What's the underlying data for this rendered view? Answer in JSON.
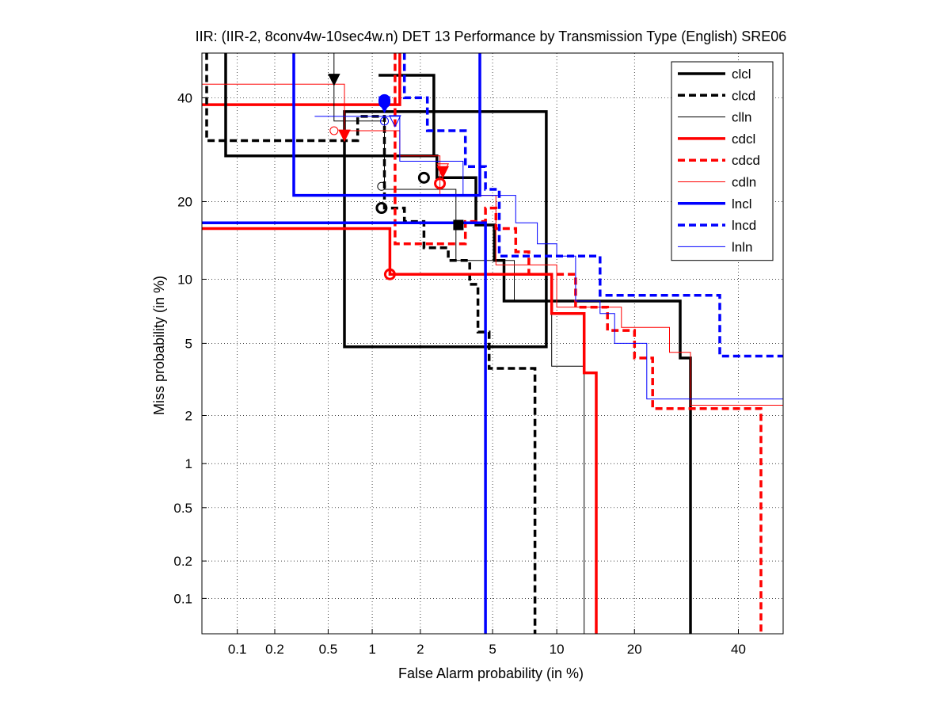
{
  "chart_data": {
    "type": "line",
    "subtype": "DET curve (step), normal-deviate scaled axes",
    "title": "IIR: (IIR-2, 8conv4w-10sec4w.n) DET 13 Performance by Transmission Type (English) SRE06",
    "xlabel": "False Alarm probability (in %)",
    "ylabel": "Miss probability (in %)",
    "x_ticks": [
      0.1,
      0.2,
      0.5,
      1,
      2,
      5,
      10,
      20,
      40
    ],
    "x_tick_labels": [
      "0.1",
      "0.2",
      "0.5",
      "1",
      "2",
      "5",
      "10",
      "20",
      "40"
    ],
    "y_ticks": [
      0.1,
      0.2,
      0.5,
      1,
      2,
      5,
      10,
      20,
      40
    ],
    "y_tick_labels": [
      "0.1",
      "0.2",
      "0.5",
      "1",
      "2",
      "5",
      "10",
      "20",
      "40"
    ],
    "xlim": [
      0.05,
      50
    ],
    "ylim": [
      0.05,
      50
    ],
    "grid": "dotted",
    "legend_position": "top-right",
    "series": [
      {
        "name": "clcl",
        "color": "#000000",
        "style": "solid",
        "weight": "thick",
        "points": [
          [
            0.08,
            60
          ],
          [
            0.08,
            28
          ],
          [
            2.5,
            28
          ],
          [
            2.5,
            24
          ],
          [
            4.1,
            24
          ],
          [
            4.1,
            16.5
          ],
          [
            5.1,
            16.5
          ],
          [
            5.1,
            12
          ],
          [
            5.7,
            12
          ],
          [
            5.7,
            8
          ],
          [
            28,
            8
          ],
          [
            28,
            4.2
          ],
          [
            30,
            4.2
          ],
          [
            30,
            0.05
          ]
        ],
        "actual_marker": {
          "x": 2.1,
          "y": 24,
          "shape": "circle"
        },
        "min_marker": {
          "x": 3.3,
          "y": 16.5,
          "shape": "square"
        }
      },
      {
        "name": "clcd",
        "color": "#000000",
        "style": "dashed",
        "weight": "thick",
        "points": [
          [
            0.055,
            60
          ],
          [
            0.055,
            31
          ],
          [
            0.8,
            31
          ],
          [
            0.8,
            36
          ],
          [
            1.2,
            36
          ],
          [
            1.2,
            19
          ],
          [
            1.6,
            19
          ],
          [
            1.6,
            17
          ],
          [
            2.1,
            17
          ],
          [
            2.1,
            13.5
          ],
          [
            2.9,
            13.5
          ],
          [
            2.9,
            12
          ],
          [
            3.8,
            12
          ],
          [
            3.8,
            9.5
          ],
          [
            4.2,
            9.5
          ],
          [
            4.2,
            5.7
          ],
          [
            4.8,
            5.7
          ],
          [
            4.8,
            3.7
          ],
          [
            8,
            3.7
          ],
          [
            8,
            0.05
          ]
        ],
        "actual_marker": {
          "x": 1.15,
          "y": 19,
          "shape": "circle"
        },
        "min_marker": {
          "x": 0.55,
          "y": 44,
          "shape": "triangle-down"
        }
      },
      {
        "name": "clln",
        "color": "#000000",
        "style": "solid",
        "weight": "thin",
        "points": [
          [
            0.55,
            60
          ],
          [
            0.55,
            35
          ],
          [
            1.2,
            35
          ],
          [
            1.2,
            22
          ],
          [
            3.2,
            22
          ],
          [
            3.2,
            12
          ],
          [
            6.4,
            12
          ],
          [
            6.4,
            8
          ],
          [
            9.5,
            8
          ],
          [
            9.5,
            3.8
          ],
          [
            13,
            3.8
          ],
          [
            13,
            0.05
          ]
        ],
        "actual_marker": {
          "x": 1.15,
          "y": 22.5,
          "shape": "circle"
        },
        "min_marker": {
          "x": 0.75,
          "y": 52,
          "shape": "triangle-down"
        }
      },
      {
        "name": "cdcl",
        "color": "#ff0000",
        "style": "solid",
        "weight": "thick",
        "points": [
          [
            0.05,
            16
          ],
          [
            1.3,
            16
          ],
          [
            1.3,
            10.5
          ],
          [
            9.5,
            10.5
          ],
          [
            9.5,
            7
          ],
          [
            13,
            7
          ],
          [
            13,
            3.5
          ],
          [
            14.5,
            3.5
          ],
          [
            14.5,
            0.05
          ]
        ],
        "actual_marker": {
          "x": 1.3,
          "y": 10.5,
          "shape": "circle"
        },
        "min_marker": {
          "x": 0.65,
          "y": 32,
          "shape": "triangle-down"
        }
      },
      {
        "name": "cdcd",
        "color": "#ff0000",
        "style": "dashed",
        "weight": "thick",
        "points": [
          [
            1.4,
            60
          ],
          [
            1.4,
            14
          ],
          [
            3.6,
            14
          ],
          [
            3.6,
            17
          ],
          [
            4.6,
            17
          ],
          [
            4.6,
            19
          ],
          [
            5.2,
            19
          ],
          [
            5.2,
            16
          ],
          [
            6.5,
            16
          ],
          [
            6.5,
            13
          ],
          [
            7.5,
            13
          ],
          [
            7.5,
            10.5
          ],
          [
            12,
            10.5
          ],
          [
            12,
            7.5
          ],
          [
            16,
            7.5
          ],
          [
            16,
            5.8
          ],
          [
            20,
            5.8
          ],
          [
            20,
            4.2
          ],
          [
            23,
            4.2
          ],
          [
            23,
            2.2
          ],
          [
            45,
            2.2
          ],
          [
            45,
            0.05
          ]
        ],
        "actual_marker": {
          "x": 2.6,
          "y": 23,
          "shape": "circle"
        },
        "min_marker": {
          "x": 2.7,
          "y": 25,
          "shape": "triangle-down"
        }
      },
      {
        "name": "cdln",
        "color": "#ff0000",
        "style": "solid",
        "weight": "thin",
        "points": [
          [
            0.05,
            43
          ],
          [
            0.65,
            43
          ],
          [
            0.65,
            33
          ],
          [
            1.5,
            33
          ],
          [
            1.5,
            28
          ],
          [
            2.6,
            28
          ],
          [
            2.6,
            21
          ],
          [
            5.2,
            21
          ],
          [
            5.2,
            11.5
          ],
          [
            10,
            11.5
          ],
          [
            10,
            7.5
          ],
          [
            18,
            7.5
          ],
          [
            18,
            6
          ],
          [
            26,
            6
          ],
          [
            26,
            4.5
          ],
          [
            30,
            4.5
          ],
          [
            30,
            2.3
          ],
          [
            50,
            2.3
          ]
        ],
        "actual_marker": {
          "x": 0.55,
          "y": 33,
          "shape": "circle"
        },
        "min_marker": {
          "x": 2.7,
          "y": 25.5,
          "shape": "triangle-down"
        }
      },
      {
        "name": "lncl",
        "color": "#0000ff",
        "style": "solid",
        "weight": "thick",
        "points": [
          [
            0.05,
            16.8
          ],
          [
            4.6,
            16.8
          ],
          [
            4.6,
            0.05
          ]
        ],
        "extra_points": [
          [
            0.28,
            60
          ],
          [
            0.28,
            21
          ],
          [
            4.3,
            21
          ],
          [
            4.3,
            60
          ]
        ],
        "actual_marker": {
          "x": 1.2,
          "y": 39,
          "shape": "circle"
        },
        "min_marker": {
          "x": 1.2,
          "y": 38,
          "shape": "triangle-down"
        }
      },
      {
        "name": "lncd",
        "color": "#0000ff",
        "style": "dashed",
        "weight": "thick",
        "points": [
          [
            1.6,
            60
          ],
          [
            1.6,
            40
          ],
          [
            2.2,
            40
          ],
          [
            2.2,
            33
          ],
          [
            3.6,
            33
          ],
          [
            3.6,
            26
          ],
          [
            4.6,
            26
          ],
          [
            4.6,
            22
          ],
          [
            5.4,
            22
          ],
          [
            5.4,
            12.5
          ],
          [
            15,
            12.5
          ],
          [
            15,
            8.5
          ],
          [
            36,
            8.5
          ],
          [
            36,
            4.3
          ],
          [
            50,
            4.3
          ]
        ],
        "actual_marker": {
          "x": 1.2,
          "y": 39.5,
          "shape": "circle"
        },
        "min_marker": {
          "x": 1.2,
          "y": 39,
          "shape": "triangle-down"
        }
      },
      {
        "name": "lnln",
        "color": "#0000ff",
        "style": "solid",
        "weight": "thin",
        "points": [
          [
            0.4,
            36
          ],
          [
            1.5,
            36
          ],
          [
            1.5,
            27
          ],
          [
            3.5,
            27
          ],
          [
            3.5,
            21
          ],
          [
            6.5,
            21
          ],
          [
            6.5,
            16.8
          ],
          [
            8.2,
            16.8
          ],
          [
            8.2,
            14
          ],
          [
            10,
            14
          ],
          [
            10,
            12.5
          ],
          [
            12,
            12.5
          ],
          [
            12,
            8
          ],
          [
            15,
            8
          ],
          [
            15,
            7
          ],
          [
            17,
            7
          ],
          [
            17,
            5
          ],
          [
            22,
            5
          ],
          [
            22,
            2.5
          ],
          [
            50,
            2.5
          ]
        ],
        "actual_marker": {
          "x": 1.2,
          "y": 35,
          "shape": "circle"
        },
        "min_marker": {
          "x": 1.4,
          "y": 35,
          "shape": "triangle-down"
        }
      }
    ],
    "extra_boxes": [
      {
        "name": "clcl-box",
        "color": "#000000",
        "weight": "thick",
        "corners": [
          [
            0.65,
            37
          ],
          [
            9,
            37
          ],
          [
            9,
            4.8
          ],
          [
            0.65,
            4.8
          ]
        ]
      },
      {
        "name": "clcl-inner-box",
        "color": "#000000",
        "weight": "thick",
        "corners": [
          [
            1.1,
            45
          ],
          [
            2.4,
            45
          ],
          [
            2.4,
            28
          ]
        ]
      },
      {
        "name": "cdcl-upper",
        "color": "#ff0000",
        "weight": "thick",
        "corners": [
          [
            0.05,
            38.5
          ],
          [
            1.5,
            38.5
          ],
          [
            1.5,
            60
          ]
        ]
      }
    ],
    "legend": [
      "clcl",
      "clcd",
      "clln",
      "cdcl",
      "cdcd",
      "cdln",
      "lncl",
      "lncd",
      "lnln"
    ]
  }
}
